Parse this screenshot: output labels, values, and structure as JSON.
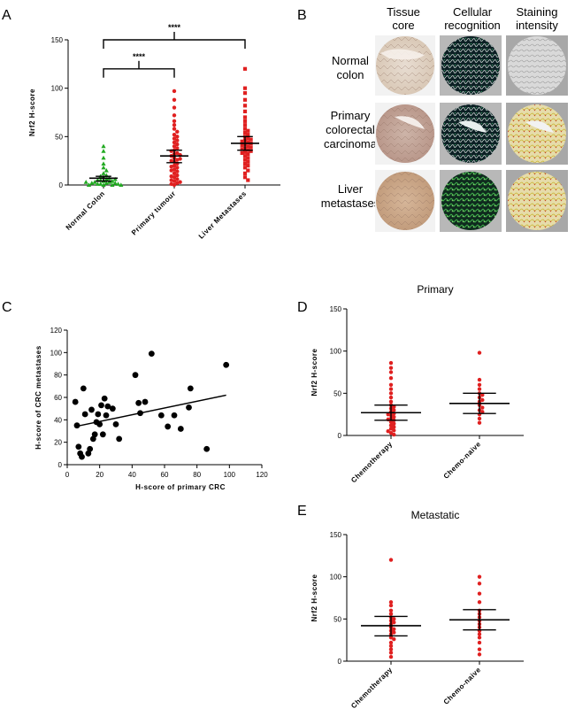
{
  "figure": {
    "panels": [
      "A",
      "B",
      "C",
      "D",
      "E"
    ]
  },
  "panel_b": {
    "column_headers": [
      [
        "Tissue",
        "core"
      ],
      [
        "Cellular",
        "recognition"
      ],
      [
        "Staining",
        "intensity"
      ]
    ],
    "row_labels": [
      [
        "Normal",
        "colon"
      ],
      [
        "Primary",
        "colorectal",
        "carcinoma"
      ],
      [
        "Liver",
        "metastases"
      ]
    ]
  },
  "chart_data": [
    {
      "panel": "A",
      "type": "scatter",
      "ylabel": "Nrf2 H-score",
      "ylim": [
        0,
        150
      ],
      "yticks": [
        0,
        50,
        100,
        150
      ],
      "categories": [
        "Normal Colon",
        "Primary tumour",
        "Liver Metastases"
      ],
      "series": [
        {
          "colour": "#22aa22",
          "marker": "triangle",
          "mean": 7,
          "ci": [
            4,
            9
          ],
          "values": [
            40,
            35,
            28,
            22,
            18,
            15,
            12,
            10,
            9,
            8,
            7,
            6,
            5,
            5,
            4,
            4,
            3,
            3,
            2,
            2,
            2,
            1,
            1,
            1,
            0,
            0,
            0,
            0,
            3,
            6
          ]
        },
        {
          "colour": "#e02020",
          "marker": "circle",
          "mean": 30,
          "ci": [
            23,
            36
          ],
          "values": [
            97,
            88,
            80,
            72,
            66,
            62,
            58,
            55,
            52,
            50,
            48,
            46,
            44,
            42,
            40,
            38,
            36,
            35,
            33,
            32,
            30,
            28,
            26,
            25,
            24,
            22,
            20,
            19,
            18,
            16,
            15,
            14,
            12,
            10,
            9,
            8,
            6,
            5,
            4,
            3,
            2,
            1,
            0,
            27,
            31
          ]
        },
        {
          "colour": "#e02020",
          "marker": "square",
          "mean": 43,
          "ci": [
            36,
            50
          ],
          "values": [
            120,
            100,
            95,
            88,
            82,
            76,
            70,
            66,
            62,
            58,
            56,
            54,
            52,
            50,
            48,
            46,
            45,
            44,
            42,
            41,
            40,
            39,
            38,
            37,
            36,
            35,
            34,
            33,
            32,
            30,
            28,
            26,
            24,
            22,
            20,
            18,
            15,
            12,
            8,
            5,
            43,
            47
          ]
        }
      ],
      "comparisons": [
        {
          "from": 0,
          "to": 1,
          "label": "****",
          "y": 120
        },
        {
          "from": 0,
          "to": 2,
          "label": "****",
          "y": 150
        }
      ]
    },
    {
      "panel": "C",
      "type": "scatter",
      "xlabel": "H-score of primary CRC",
      "ylabel": "H-score of CRC metastases",
      "xlim": [
        0,
        120
      ],
      "ylim": [
        0,
        120
      ],
      "xticks": [
        0,
        20,
        40,
        60,
        80,
        100,
        120
      ],
      "yticks": [
        0,
        20,
        40,
        60,
        80,
        100,
        120
      ],
      "points": [
        [
          5,
          56
        ],
        [
          6,
          35
        ],
        [
          7,
          16
        ],
        [
          8,
          10
        ],
        [
          9,
          7
        ],
        [
          10,
          68
        ],
        [
          11,
          45
        ],
        [
          13,
          10
        ],
        [
          14,
          14
        ],
        [
          15,
          49
        ],
        [
          16,
          23
        ],
        [
          17,
          27
        ],
        [
          18,
          38
        ],
        [
          19,
          45
        ],
        [
          20,
          36
        ],
        [
          21,
          53
        ],
        [
          22,
          27
        ],
        [
          23,
          59
        ],
        [
          24,
          44
        ],
        [
          25,
          52
        ],
        [
          28,
          50
        ],
        [
          30,
          36
        ],
        [
          32,
          23
        ],
        [
          42,
          80
        ],
        [
          44,
          55
        ],
        [
          45,
          46
        ],
        [
          48,
          56
        ],
        [
          52,
          99
        ],
        [
          58,
          44
        ],
        [
          62,
          34
        ],
        [
          66,
          44
        ],
        [
          70,
          32
        ],
        [
          75,
          51
        ],
        [
          76,
          68
        ],
        [
          86,
          14
        ],
        [
          98,
          89
        ]
      ],
      "trend": [
        [
          5,
          34
        ],
        [
          98,
          62
        ]
      ]
    },
    {
      "panel": "D",
      "type": "scatter",
      "title": "Primary",
      "ylabel": "Nrf2 H-score",
      "ylim": [
        0,
        150
      ],
      "yticks": [
        0,
        50,
        100,
        150
      ],
      "categories": [
        "Chemotherapy",
        "Chemo-naive"
      ],
      "series": [
        {
          "colour": "#e02020",
          "mean": 27,
          "ci": [
            18,
            36
          ],
          "values": [
            86,
            80,
            75,
            68,
            60,
            55,
            50,
            45,
            40,
            36,
            34,
            32,
            30,
            28,
            26,
            25,
            24,
            22,
            20,
            19,
            18,
            16,
            14,
            12,
            10,
            8,
            6,
            5,
            3,
            1
          ]
        },
        {
          "colour": "#e02020",
          "mean": 38,
          "ci": [
            26,
            50
          ],
          "values": [
            98,
            66,
            60,
            55,
            50,
            48,
            45,
            42,
            40,
            36,
            33,
            30,
            28,
            25,
            20,
            15
          ]
        }
      ]
    },
    {
      "panel": "E",
      "type": "scatter",
      "title": "Metastatic",
      "ylabel": "Nrf2 H-score",
      "ylim": [
        0,
        150
      ],
      "yticks": [
        0,
        50,
        100,
        150
      ],
      "categories": [
        "Chemotherapy",
        "Chemo-naive"
      ],
      "series": [
        {
          "colour": "#e02020",
          "mean": 42,
          "ci": [
            30,
            53
          ],
          "values": [
            120,
            70,
            66,
            60,
            56,
            52,
            50,
            48,
            46,
            44,
            40,
            38,
            36,
            34,
            32,
            28,
            26,
            22,
            18,
            14,
            10,
            5
          ]
        },
        {
          "colour": "#e02020",
          "mean": 49,
          "ci": [
            37,
            61
          ],
          "values": [
            100,
            92,
            80,
            70,
            60,
            56,
            52,
            48,
            44,
            40,
            36,
            32,
            28,
            22,
            14,
            8
          ]
        }
      ]
    }
  ]
}
